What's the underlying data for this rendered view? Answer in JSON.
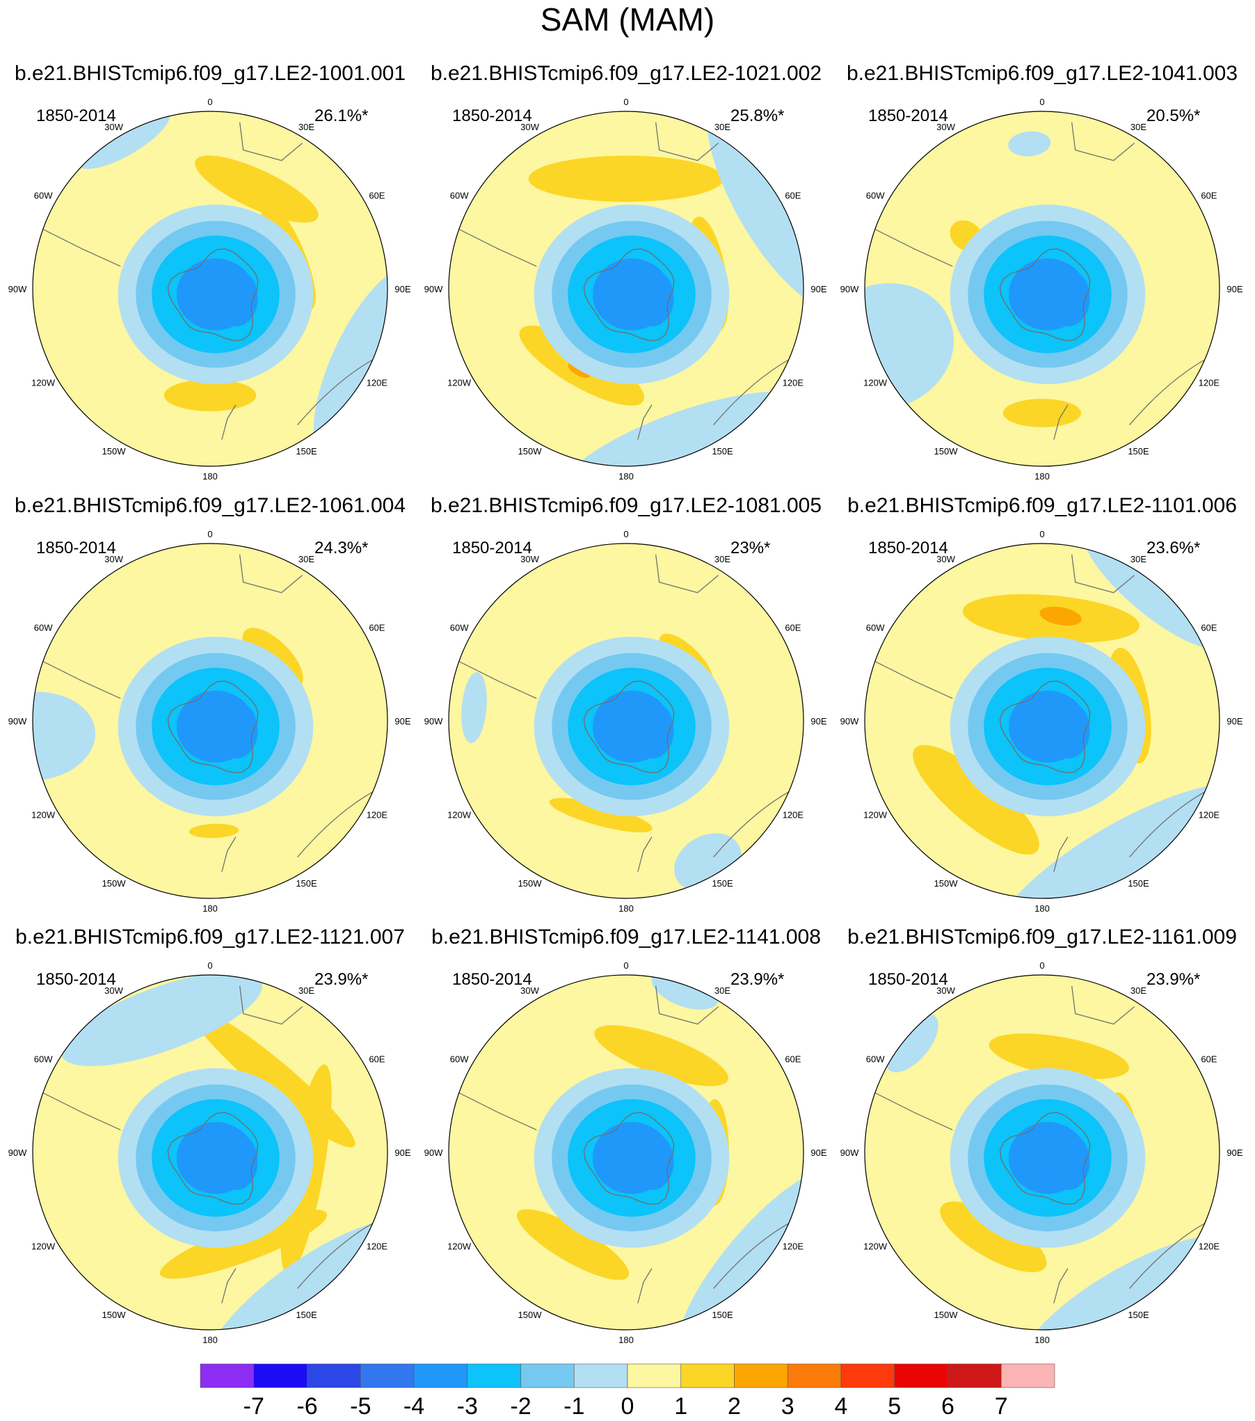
{
  "title": "SAM (MAM)",
  "colors": {
    "-7": "#8d2cf2",
    "-6": "#1a0df5",
    "-5": "#2b47e6",
    "-4": "#3377f0",
    "-3": "#1f98fa",
    "-2": "#0cc3fa",
    "-1": "#75c9f0",
    "0": "#b3dff3",
    "1": "#fcf7a0",
    "2": "#fcd626",
    "3": "#fca602",
    "4": "#fc7b0a",
    "5": "#fc3a0c",
    "6": "#ea0404",
    "7": "#ce1818",
    "8": "#fbb4b4",
    "land": "#707070"
  },
  "lon_labels": [
    "0",
    "30E",
    "60E",
    "90E",
    "120E",
    "150E",
    "180",
    "150W",
    "120W",
    "90W",
    "60W",
    "30W"
  ],
  "chart_data": {
    "type": "heatmap",
    "projection": "south-polar-stereographic",
    "units": "SAM regression (contour intervals of 1)",
    "panels": [
      {
        "run": "b.e21.BHISTcmip6.f09_g17.LE2-1001.001",
        "period": "1850-2014",
        "explained": "26.1%*",
        "features": [
          {
            "lon": 25,
            "r": 0.62,
            "rx": 0.38,
            "ry": 0.11,
            "level": 1
          },
          {
            "lon": 67,
            "r": 0.48,
            "rx": 0.33,
            "ry": 0.09,
            "level": 1
          },
          {
            "lon": 180,
            "r": 0.6,
            "rx": 0.26,
            "ry": 0.09,
            "level": 1
          },
          {
            "lon": 115,
            "r": 1.0,
            "rx": 0.6,
            "ry": 0.22,
            "level": -1
          },
          {
            "lon": -30,
            "r": 0.98,
            "rx": 0.3,
            "ry": 0.1,
            "level": -1
          }
        ],
        "core_min": -4
      },
      {
        "run": "b.e21.BHISTcmip6.f09_g17.LE2-1021.002",
        "period": "1850-2014",
        "explained": "25.8%*",
        "features": [
          {
            "lon": 0,
            "r": 0.62,
            "rx": 0.55,
            "ry": 0.13,
            "level": 1
          },
          {
            "lon": 80,
            "r": 0.47,
            "rx": 0.33,
            "ry": 0.1,
            "level": 1
          },
          {
            "lon": -150,
            "r": 0.5,
            "rx": 0.4,
            "ry": 0.12,
            "level": 1
          },
          {
            "lon": -150,
            "r": 0.53,
            "rx": 0.07,
            "ry": 0.03,
            "level": 2
          },
          {
            "lon": 160,
            "r": 1.0,
            "rx": 0.8,
            "ry": 0.25,
            "level": -1
          },
          {
            "lon": 60,
            "r": 1.0,
            "rx": 0.7,
            "ry": 0.25,
            "level": -1
          }
        ],
        "core_min": -4
      },
      {
        "run": "b.e21.BHISTcmip6.f09_g17.LE2-1041.003",
        "period": "1850-2014",
        "explained": "20.5%*",
        "features": [
          {
            "lon": -55,
            "r": 0.52,
            "rx": 0.08,
            "ry": 0.1,
            "level": 1
          },
          {
            "lon": 180,
            "r": 0.7,
            "rx": 0.22,
            "ry": 0.08,
            "level": 1
          },
          {
            "lon": -110,
            "r": 0.95,
            "rx": 0.35,
            "ry": 0.4,
            "level": -1
          },
          {
            "lon": -5,
            "r": 0.82,
            "rx": 0.12,
            "ry": 0.07,
            "level": -1
          }
        ],
        "core_min": -4
      },
      {
        "run": "b.e21.BHISTcmip6.f09_g17.LE2-1061.004",
        "period": "1850-2014",
        "explained": "24.3%*",
        "features": [
          {
            "lon": 45,
            "r": 0.5,
            "rx": 0.22,
            "ry": 0.1,
            "level": 1
          },
          {
            "lon": 178,
            "r": 0.62,
            "rx": 0.14,
            "ry": 0.04,
            "level": 1
          },
          {
            "lon": -95,
            "r": 1.0,
            "rx": 0.25,
            "ry": 0.35,
            "level": -1
          }
        ],
        "core_min": -4
      },
      {
        "run": "b.e21.BHISTcmip6.f09_g17.LE2-1081.005",
        "period": "1850-2014",
        "explained": "23%*",
        "features": [
          {
            "lon": 45,
            "r": 0.48,
            "rx": 0.2,
            "ry": 0.08,
            "level": 1
          },
          {
            "lon": -165,
            "r": 0.55,
            "rx": 0.3,
            "ry": 0.06,
            "level": 1
          },
          {
            "lon": -85,
            "r": 0.86,
            "rx": 0.2,
            "ry": 0.07,
            "level": -1
          },
          {
            "lon": 150,
            "r": 0.92,
            "rx": 0.2,
            "ry": 0.15,
            "level": -1
          }
        ],
        "core_min": -4
      },
      {
        "run": "b.e21.BHISTcmip6.f09_g17.LE2-1101.006",
        "period": "1850-2014",
        "explained": "23.6%*",
        "features": [
          {
            "lon": 5,
            "r": 0.58,
            "rx": 0.5,
            "ry": 0.13,
            "level": 1
          },
          {
            "lon": 10,
            "r": 0.6,
            "rx": 0.12,
            "ry": 0.05,
            "level": 2
          },
          {
            "lon": 80,
            "r": 0.5,
            "rx": 0.33,
            "ry": 0.11,
            "level": 1
          },
          {
            "lon": -140,
            "r": 0.58,
            "rx": 0.45,
            "ry": 0.14,
            "level": 1
          },
          {
            "lon": 150,
            "r": 1.0,
            "rx": 0.9,
            "ry": 0.3,
            "level": -1
          },
          {
            "lon": 40,
            "r": 0.98,
            "rx": 0.5,
            "ry": 0.15,
            "level": -1
          }
        ],
        "core_min": -4
      },
      {
        "run": "b.e21.BHISTcmip6.f09_g17.LE2-1121.007",
        "period": "1850-2014",
        "explained": "23.9%*",
        "features": [
          {
            "lon": 40,
            "r": 0.55,
            "rx": 0.6,
            "ry": 0.1,
            "level": 1
          },
          {
            "lon": 100,
            "r": 0.55,
            "rx": 0.6,
            "ry": 0.1,
            "level": 1
          },
          {
            "lon": 160,
            "r": 0.55,
            "rx": 0.5,
            "ry": 0.1,
            "level": 1
          },
          {
            "lon": -20,
            "r": 0.8,
            "rx": 0.6,
            "ry": 0.18,
            "level": -1
          },
          {
            "lon": 145,
            "r": 1.0,
            "rx": 0.7,
            "ry": 0.22,
            "level": -1
          }
        ],
        "core_min": -4
      },
      {
        "run": "b.e21.BHISTcmip6.f09_g17.LE2-1141.008",
        "period": "1850-2014",
        "explained": "23.9%*",
        "features": [
          {
            "lon": 20,
            "r": 0.58,
            "rx": 0.4,
            "ry": 0.11,
            "level": 1
          },
          {
            "lon": 90,
            "r": 0.5,
            "rx": 0.3,
            "ry": 0.08,
            "level": 1
          },
          {
            "lon": -150,
            "r": 0.6,
            "rx": 0.36,
            "ry": 0.1,
            "level": 1
          },
          {
            "lon": 130,
            "r": 1.0,
            "rx": 0.7,
            "ry": 0.22,
            "level": -1
          },
          {
            "lon": 20,
            "r": 0.98,
            "rx": 0.2,
            "ry": 0.1,
            "level": -1
          }
        ],
        "core_min": -4
      },
      {
        "run": "b.e21.BHISTcmip6.f09_g17.LE2-1161.009",
        "period": "1850-2014",
        "explained": "23.9%*",
        "features": [
          {
            "lon": 10,
            "r": 0.55,
            "rx": 0.4,
            "ry": 0.11,
            "level": 1
          },
          {
            "lon": 85,
            "r": 0.45,
            "rx": 0.3,
            "ry": 0.1,
            "level": 1
          },
          {
            "lon": -150,
            "r": 0.55,
            "rx": 0.34,
            "ry": 0.12,
            "level": 1
          },
          {
            "lon": 150,
            "r": 1.0,
            "rx": 0.7,
            "ry": 0.22,
            "level": -1
          },
          {
            "lon": -50,
            "r": 0.96,
            "rx": 0.2,
            "ry": 0.1,
            "level": -1
          }
        ],
        "core_min": -4
      }
    ],
    "colorbar": {
      "levels": [
        -7,
        -6,
        -5,
        -4,
        -3,
        -2,
        -1,
        0,
        1,
        2,
        3,
        4,
        5,
        6,
        7
      ],
      "labels": [
        "-7",
        "-6",
        "-5",
        "-4",
        "-3",
        "-2",
        "-1",
        "0",
        "1",
        "2",
        "3",
        "4",
        "5",
        "6",
        "7"
      ],
      "bins": [
        "-7",
        "-6",
        "-5",
        "-4",
        "-3",
        "-2",
        "-1",
        "0",
        "1",
        "2",
        "3",
        "4",
        "5",
        "6",
        "7",
        "8"
      ]
    }
  }
}
